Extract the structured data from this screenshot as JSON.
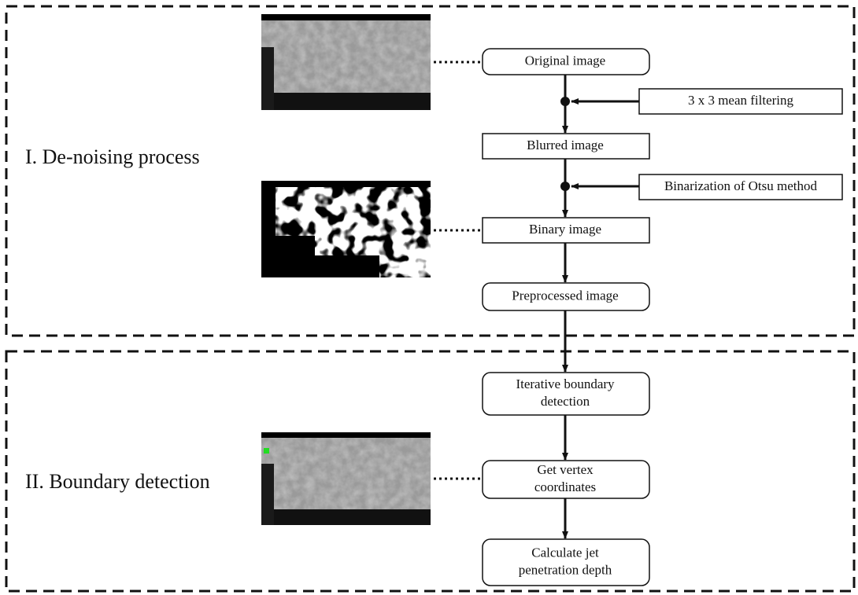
{
  "sections": [
    {
      "label": "I. De-noising process"
    },
    {
      "label": "II. Boundary detection"
    }
  ],
  "nodes": [
    {
      "lines": [
        "Original image"
      ]
    },
    {
      "lines": [
        "Blurred image"
      ]
    },
    {
      "lines": [
        "Binary image"
      ]
    },
    {
      "lines": [
        "Preprocessed  image"
      ]
    },
    {
      "lines": [
        "Iterative boundary",
        "detection"
      ]
    },
    {
      "lines": [
        "Get vertex",
        "coordinates"
      ]
    },
    {
      "lines": [
        "Calculate jet",
        "penetration depth"
      ]
    }
  ],
  "inputs": [
    {
      "label": "3 x 3 mean filtering"
    },
    {
      "label": "Binarization of Otsu method"
    }
  ]
}
